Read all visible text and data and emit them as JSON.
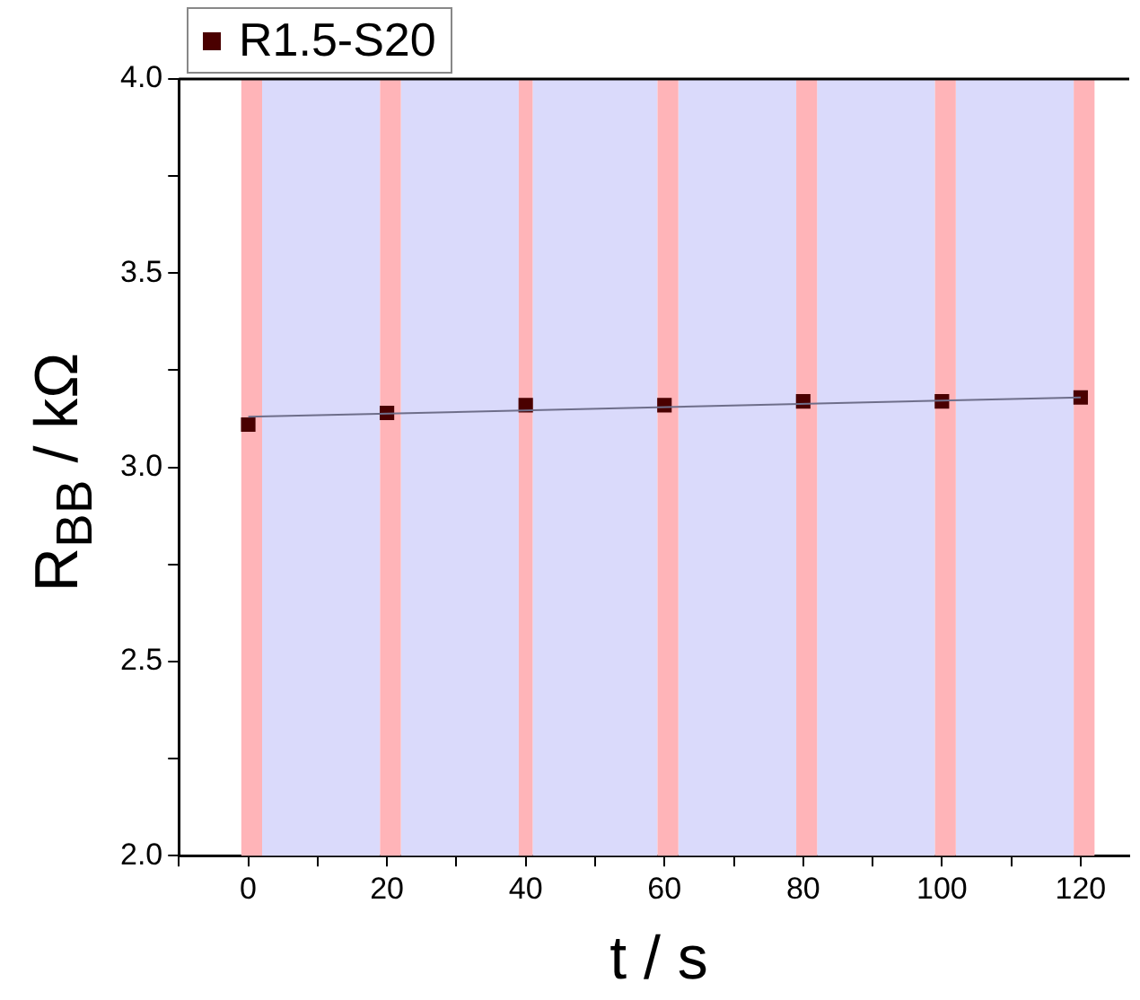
{
  "chart_data": {
    "type": "scatter",
    "xlabel": "t / s",
    "ylabel": "R$_{BB}$ / kΩ",
    "xlim": [
      -10,
      127
    ],
    "ylim": [
      2,
      4
    ],
    "xticks": [
      {
        "value": -10,
        "label": null
      },
      0,
      {
        "value": 10,
        "label": null
      },
      20,
      {
        "value": 30,
        "label": null
      },
      40,
      {
        "value": 50,
        "label": null
      },
      60,
      {
        "value": 70,
        "label": null
      },
      80,
      {
        "value": 90,
        "label": null
      },
      100,
      {
        "value": 110,
        "label": null
      },
      120
    ],
    "yticks": [
      {
        "value": 2,
        "label": "2.0"
      },
      {
        "value": 2.25,
        "label": null
      },
      {
        "value": 2.5,
        "label": "2.5"
      },
      {
        "value": 2.75,
        "label": null
      },
      {
        "value": 3,
        "label": "3.0"
      },
      {
        "value": 3.25,
        "label": null
      },
      {
        "value": 3.5,
        "label": "3.5"
      },
      {
        "value": 3.75,
        "label": null
      },
      {
        "value": 4,
        "label": "4.0"
      }
    ],
    "grid": false,
    "legend": "top left",
    "marker": "square",
    "series": [
      {
        "name": "R1.5-S20",
        "type": "scatter",
        "color": "#4a0000",
        "x": [
          0,
          20,
          40,
          60,
          80,
          100,
          120
        ],
        "values": [
          3.11,
          3.14,
          3.16,
          3.16,
          3.17,
          3.17,
          3.18
        ]
      },
      {
        "type": "line",
        "color": "#6e6e8a",
        "marker": "none",
        "line_style": "solid",
        "x": [
          0,
          120
        ],
        "values": [
          3.13,
          3.18
        ]
      }
    ],
    "bands": [
      {
        "axis": "x",
        "from": 2,
        "to": 19,
        "color": "#dadafb"
      },
      {
        "axis": "x",
        "from": 22,
        "to": 39,
        "color": "#dadafb"
      },
      {
        "axis": "x",
        "from": 41,
        "to": 59,
        "color": "#dadafb"
      },
      {
        "axis": "x",
        "from": 62,
        "to": 79,
        "color": "#dadafb"
      },
      {
        "axis": "x",
        "from": 82,
        "to": 99,
        "color": "#dadafb"
      },
      {
        "axis": "x",
        "from": 102,
        "to": 119,
        "color": "#dadafb"
      },
      {
        "axis": "x",
        "from": -1,
        "to": 2,
        "color": "#ffb4b8"
      },
      {
        "axis": "x",
        "from": 19,
        "to": 22,
        "color": "#ffb4b8"
      },
      {
        "axis": "x",
        "from": 39,
        "to": 41,
        "color": "#ffb4b8"
      },
      {
        "axis": "x",
        "from": 59,
        "to": 62,
        "color": "#ffb4b8"
      },
      {
        "axis": "x",
        "from": 79,
        "to": 82,
        "color": "#ffb4b8"
      },
      {
        "axis": "x",
        "from": 99,
        "to": 102,
        "color": "#ffb4b8"
      },
      {
        "axis": "x",
        "from": 119,
        "to": 122,
        "color": "#ffb4b8"
      }
    ]
  }
}
